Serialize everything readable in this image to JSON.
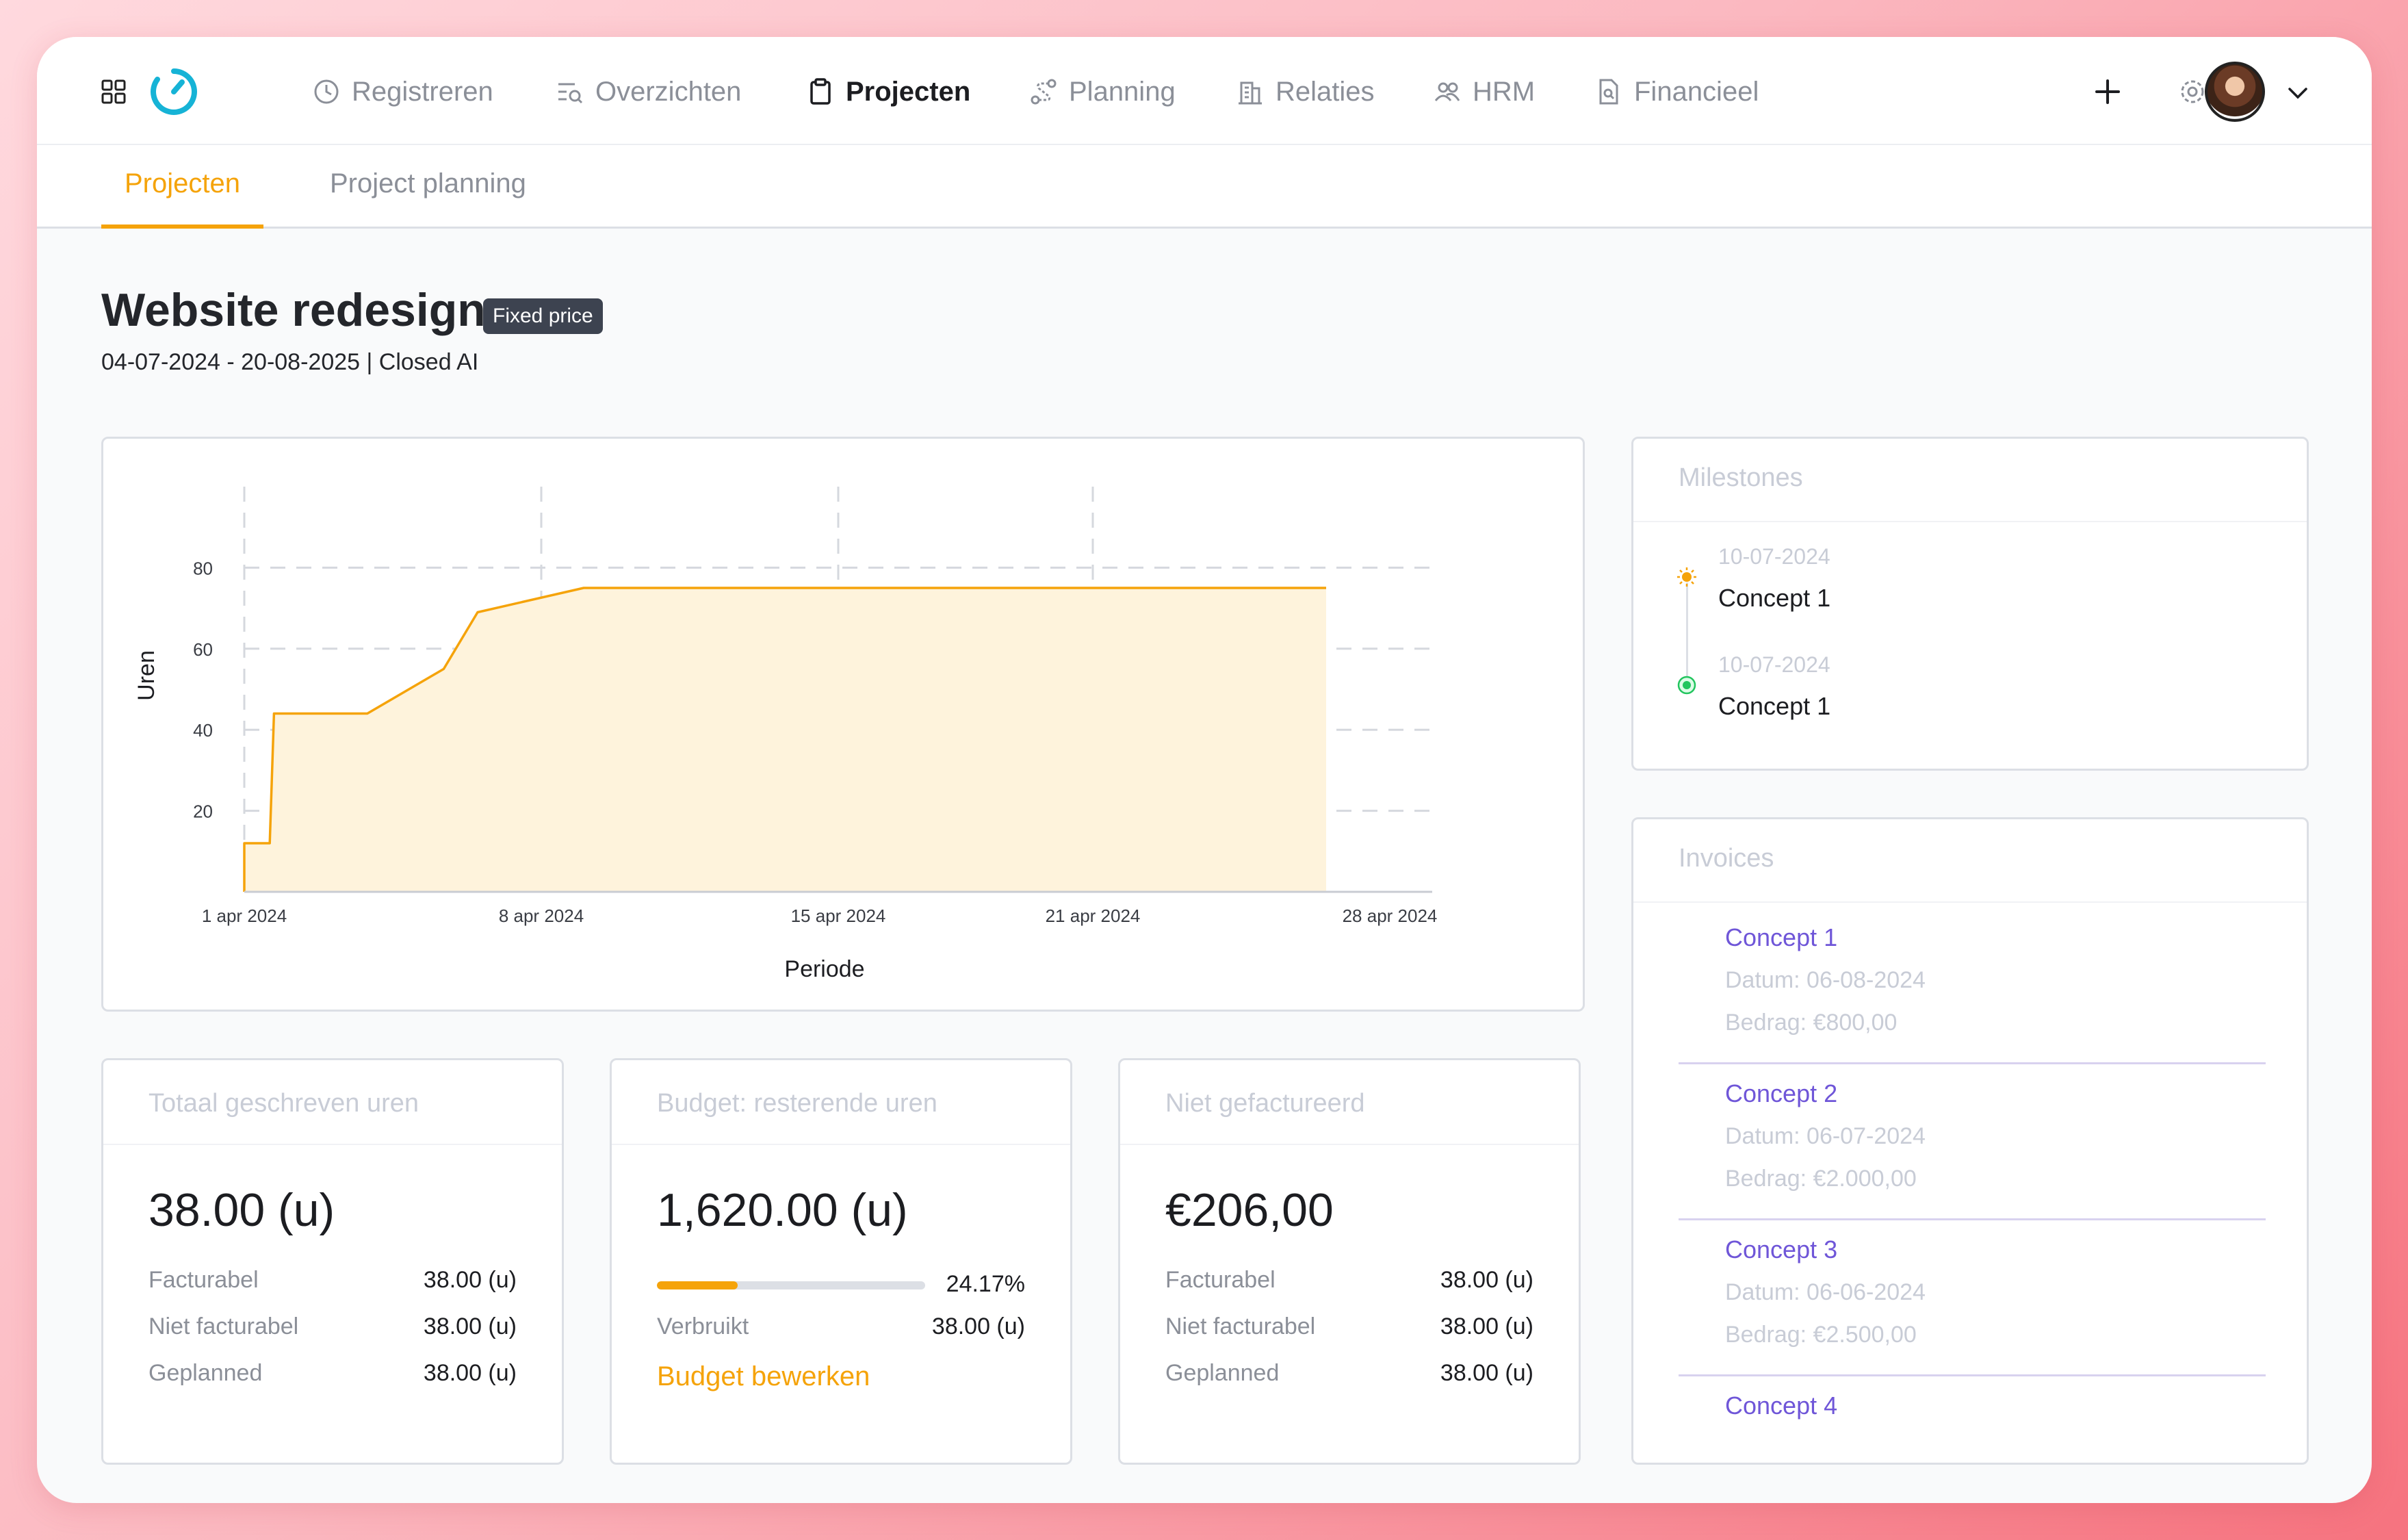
{
  "nav": {
    "items": [
      {
        "label": "Registreren",
        "icon": "clock-icon",
        "active": false
      },
      {
        "label": "Overzichten",
        "icon": "list-search-icon",
        "active": false
      },
      {
        "label": "Projecten",
        "icon": "clipboard-icon",
        "active": true
      },
      {
        "label": "Planning",
        "icon": "route-icon",
        "active": false
      },
      {
        "label": "Relaties",
        "icon": "building-icon",
        "active": false
      },
      {
        "label": "HRM",
        "icon": "users-icon",
        "active": false
      },
      {
        "label": "Financieel",
        "icon": "file-search-icon",
        "active": false
      }
    ],
    "accent_color": "#f5a30a",
    "logo_color": "#16b3d6"
  },
  "tabs": [
    {
      "label": "Projecten",
      "active": true
    },
    {
      "label": "Project planning",
      "active": false
    }
  ],
  "project": {
    "title": "Website redesign",
    "badge": "Fixed price",
    "subtitle": "04-07-2024 - 20-08-2025 | Closed AI"
  },
  "chart_data": {
    "type": "area",
    "title": "",
    "xlabel": "Periode",
    "ylabel": "Uren",
    "x_ticks": [
      "1 apr 2024",
      "8 apr 2024",
      "15 apr 2024",
      "21 apr 2024",
      "28 apr 2024"
    ],
    "y_ticks": [
      20,
      40,
      60,
      80
    ],
    "ylim": [
      0,
      100
    ],
    "xlim": [
      "2024-04-01",
      "2024-04-29"
    ],
    "grid": true,
    "color": "#f5a30a",
    "fill_color": "#fef3dc",
    "points": [
      {
        "x": "2024-04-01",
        "y": 0
      },
      {
        "x": "2024-04-01",
        "y": 12
      },
      {
        "x": "2024-04-01.6",
        "y": 12
      },
      {
        "x": "2024-04-01.7",
        "y": 44
      },
      {
        "x": "2024-04-03.9",
        "y": 44
      },
      {
        "x": "2024-04-05.7",
        "y": 55
      },
      {
        "x": "2024-04-06.5",
        "y": 69
      },
      {
        "x": "2024-04-09.0",
        "y": 75
      },
      {
        "x": "2024-04-26.5",
        "y": 75
      }
    ]
  },
  "milestones": {
    "title": "Milestones",
    "items": [
      {
        "date": "10-07-2024",
        "name": "Concept 1",
        "status_color": "#f5a30a"
      },
      {
        "date": "10-07-2024",
        "name": "Concept 1",
        "status_color": "#22c55e"
      }
    ]
  },
  "invoices": {
    "title": "Invoices",
    "items": [
      {
        "name": "Concept 1",
        "date": "Datum: 06-08-2024",
        "amount": "Bedrag: €800,00"
      },
      {
        "name": "Concept 2",
        "date": "Datum: 06-07-2024",
        "amount": "Bedrag: €2.000,00"
      },
      {
        "name": "Concept 3",
        "date": "Datum: 06-06-2024",
        "amount": "Bedrag: €2.500,00"
      },
      {
        "name": "Concept 4",
        "date": "",
        "amount": ""
      }
    ]
  },
  "stats": {
    "total": {
      "title": "Totaal geschreven uren",
      "value": "38.00 (u)",
      "rows": [
        {
          "label": "Facturabel",
          "value": "38.00 (u)"
        },
        {
          "label": "Niet facturabel",
          "value": "38.00 (u)"
        },
        {
          "label": "Geplanned",
          "value": "38.00 (u)"
        }
      ]
    },
    "budget": {
      "title": "Budget: resterende uren",
      "value": "1,620.00 (u)",
      "progress_percent": 30,
      "progress_label": "24.17%",
      "rows": [
        {
          "label": "Verbruikt",
          "value": "38.00 (u)"
        }
      ],
      "link": "Budget bewerken"
    },
    "unbilled": {
      "title": "Niet gefactureerd",
      "value": "€206,00",
      "rows": [
        {
          "label": "Facturabel",
          "value": "38.00 (u)"
        },
        {
          "label": "Niet facturabel",
          "value": "38.00 (u)"
        },
        {
          "label": "Geplanned",
          "value": "38.00 (u)"
        }
      ]
    }
  }
}
